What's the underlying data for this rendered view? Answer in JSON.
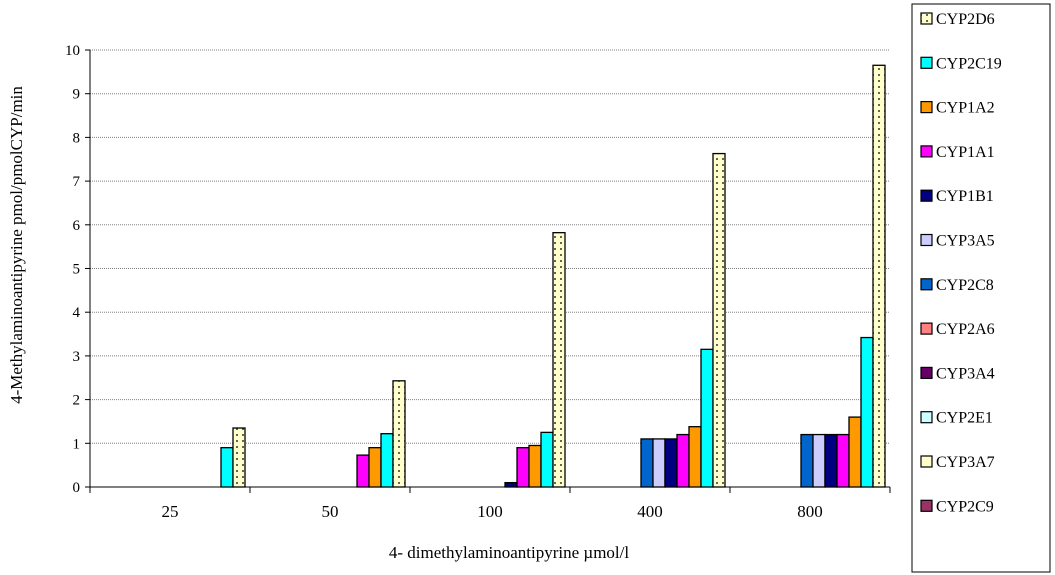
{
  "chart_data": {
    "type": "bar",
    "title": "",
    "xlabel": "4- dimethylaminoantipyrine µmol/l",
    "ylabel": "4-Methylaminoantipyrine pmol/pmolCYP/min",
    "ylim": [
      0,
      10
    ],
    "yticks": [
      0,
      1,
      2,
      3,
      4,
      5,
      6,
      7,
      8,
      9,
      10
    ],
    "grid": "horizontal-dotted",
    "legend_position": "right",
    "categories": [
      "25",
      "50",
      "100",
      "400",
      "800"
    ],
    "series": [
      {
        "name": "CYP2C9",
        "color": "#993366",
        "pattern": "solid",
        "values": [
          0,
          0,
          0,
          0,
          0
        ]
      },
      {
        "name": "CYP3A7",
        "color": "#FFFFCC",
        "pattern": "solid",
        "values": [
          0,
          0,
          0,
          0,
          0
        ]
      },
      {
        "name": "CYP2E1",
        "color": "#CCFFFF",
        "pattern": "solid",
        "values": [
          0,
          0,
          0,
          0,
          0
        ]
      },
      {
        "name": "CYP3A4",
        "color": "#660066",
        "pattern": "solid",
        "values": [
          0,
          0,
          0,
          0,
          0
        ]
      },
      {
        "name": "CYP2A6",
        "color": "#FF8080",
        "pattern": "solid",
        "values": [
          0,
          0,
          0,
          0,
          0
        ]
      },
      {
        "name": "CYP2C8",
        "color": "#0066CC",
        "pattern": "solid",
        "values": [
          0,
          0,
          0,
          1.1,
          1.2
        ]
      },
      {
        "name": "CYP3A5",
        "color": "#CCCCFF",
        "pattern": "solid",
        "values": [
          0,
          0,
          0,
          1.1,
          1.2
        ]
      },
      {
        "name": "CYP1B1",
        "color": "#000080",
        "pattern": "solid",
        "values": [
          0,
          0,
          0.1,
          1.1,
          1.2
        ]
      },
      {
        "name": "CYP1A1",
        "color": "#FF00FF",
        "pattern": "solid",
        "values": [
          0,
          0.73,
          0.9,
          1.2,
          1.2
        ]
      },
      {
        "name": "CYP1A2",
        "color": "#FF9900",
        "pattern": "solid",
        "values": [
          0,
          0.9,
          0.95,
          1.38,
          1.6
        ]
      },
      {
        "name": "CYP2C19",
        "color": "#00FFFF",
        "pattern": "solid",
        "values": [
          0.9,
          1.22,
          1.25,
          3.15,
          3.42
        ]
      },
      {
        "name": "CYP2D6",
        "color": "#FFFFCC",
        "pattern": "dotted",
        "values": [
          1.35,
          2.43,
          5.82,
          7.63,
          9.65
        ]
      }
    ]
  }
}
